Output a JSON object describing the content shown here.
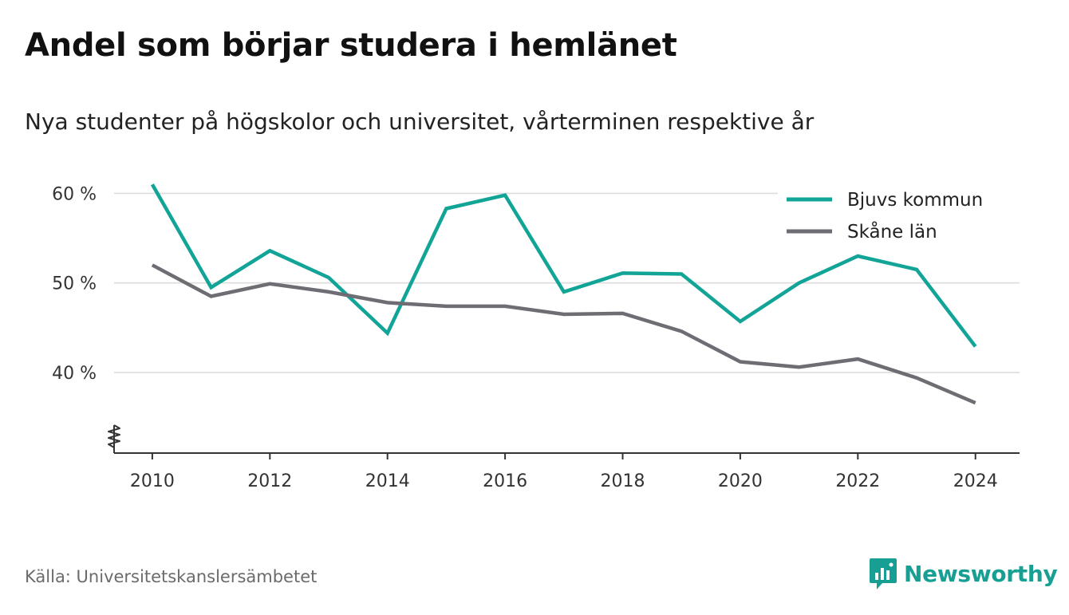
{
  "title": "Andel som börjar studera i hemlänet",
  "subtitle": "Nya studenter på högskolor och universitet, vårterminen respektive år",
  "source": "Källa: Universitetskanslersämbetet",
  "brand": {
    "name": "Newsworthy",
    "icon": "newsworthy-logo-icon",
    "color": "#179f93"
  },
  "chart_data": {
    "type": "line",
    "title": "Andel som börjar studera i hemlänet",
    "subtitle": "Nya studenter på högskolor och universitet, vårterminen respektive år",
    "x": [
      2010,
      2011,
      2012,
      2013,
      2014,
      2015,
      2016,
      2017,
      2018,
      2019,
      2020,
      2021,
      2022,
      2023,
      2024
    ],
    "x_ticks": [
      "2010",
      "2012",
      "2014",
      "2016",
      "2018",
      "2020",
      "2022",
      "2024"
    ],
    "y_ticks": [
      "40 %",
      "50 %",
      "60 %"
    ],
    "ylim": [
      31,
      62
    ],
    "xlim": [
      2009.35,
      2024.75
    ],
    "grid": true,
    "axis_break": true,
    "legend_position": "top-right",
    "series": [
      {
        "name": "Bjuvs kommun",
        "color": "#12a497",
        "values": [
          61.0,
          49.5,
          53.6,
          50.6,
          44.4,
          58.3,
          59.8,
          49.0,
          51.1,
          51.0,
          45.7,
          50.0,
          53.0,
          51.5,
          42.9
        ]
      },
      {
        "name": "Skåne län",
        "color": "#6e6d74",
        "values": [
          52.0,
          48.5,
          49.9,
          49.0,
          47.8,
          47.4,
          47.4,
          46.5,
          46.6,
          44.6,
          41.2,
          40.6,
          41.5,
          39.4,
          36.6
        ]
      }
    ]
  }
}
